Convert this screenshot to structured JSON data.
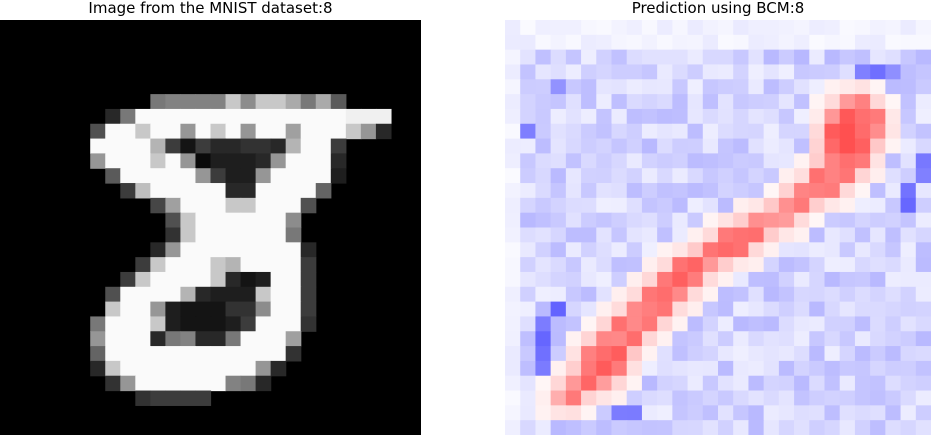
{
  "left_panel": {
    "title": "Image from the MNIST dataset:8",
    "grid": {
      "rows": 28,
      "cols": 28,
      "max": 255,
      "cells": {
        "5": {
          "10": 120,
          "11": 130,
          "12": 130,
          "13": 130,
          "14": 130,
          "15": 200,
          "16": 140,
          "17": 200,
          "18": 200,
          "19": 170,
          "20": 120,
          "21": 170,
          "22": 90
        },
        "6": {
          "7": 40,
          "8": 120,
          "9": 250,
          "10": 250,
          "11": 250,
          "12": 250,
          "13": 250,
          "14": 250,
          "15": 250,
          "16": 250,
          "17": 250,
          "18": 250,
          "19": 250,
          "20": 250,
          "21": 250,
          "22": 250,
          "23": 240,
          "24": 240,
          "25": 240
        },
        "7": {
          "6": 80,
          "7": 250,
          "8": 250,
          "9": 200,
          "10": 250,
          "11": 250,
          "12": 150,
          "13": 250,
          "14": 200,
          "15": 250,
          "16": 150,
          "17": 250,
          "18": 250,
          "19": 160,
          "20": 250,
          "21": 250,
          "22": 250,
          "23": 200,
          "24": 150,
          "25": 40
        },
        "8": {
          "6": 250,
          "7": 250,
          "8": 250,
          "9": 250,
          "10": 180,
          "11": 60,
          "12": 20,
          "13": 60,
          "14": 40,
          "15": 40,
          "16": 50,
          "17": 50,
          "18": 40,
          "19": 180,
          "20": 250,
          "21": 250,
          "22": 60
        },
        "9": {
          "6": 150,
          "7": 250,
          "8": 250,
          "9": 250,
          "10": 200,
          "11": 250,
          "12": 150,
          "13": 10,
          "14": 30,
          "15": 30,
          "16": 30,
          "17": 40,
          "18": 150,
          "19": 250,
          "20": 250,
          "21": 250,
          "22": 40
        },
        "10": {
          "7": 90,
          "8": 250,
          "9": 250,
          "10": 250,
          "11": 250,
          "12": 250,
          "13": 150,
          "14": 60,
          "15": 30,
          "16": 30,
          "17": 150,
          "18": 250,
          "19": 250,
          "20": 250,
          "21": 250,
          "22": 30
        },
        "11": {
          "8": 60,
          "9": 190,
          "10": 250,
          "11": 250,
          "12": 250,
          "13": 250,
          "14": 250,
          "15": 40,
          "16": 40,
          "17": 250,
          "18": 250,
          "19": 250,
          "20": 250,
          "21": 100
        },
        "12": {
          "10": 70,
          "11": 160,
          "12": 250,
          "13": 250,
          "14": 250,
          "15": 200,
          "16": 200,
          "17": 250,
          "18": 250,
          "19": 250,
          "20": 80
        },
        "13": {
          "11": 80,
          "12": 200,
          "13": 250,
          "14": 250,
          "15": 250,
          "16": 250,
          "17": 250,
          "18": 250,
          "19": 140
        },
        "14": {
          "11": 50,
          "12": 200,
          "13": 250,
          "14": 250,
          "15": 250,
          "16": 250,
          "17": 250,
          "18": 250,
          "19": 120
        },
        "15": {
          "10": 40,
          "11": 150,
          "12": 250,
          "13": 250,
          "14": 250,
          "15": 250,
          "16": 250,
          "17": 250,
          "18": 250,
          "19": 250,
          "20": 40
        },
        "16": {
          "9": 60,
          "10": 200,
          "11": 250,
          "12": 250,
          "13": 250,
          "14": 200,
          "15": 180,
          "16": 250,
          "17": 250,
          "18": 250,
          "19": 250,
          "20": 60
        },
        "17": {
          "8": 60,
          "9": 200,
          "10": 250,
          "11": 250,
          "12": 250,
          "13": 250,
          "14": 200,
          "15": 40,
          "16": 20,
          "17": 30,
          "18": 250,
          "19": 250,
          "20": 60
        },
        "18": {
          "7": 80,
          "8": 250,
          "9": 250,
          "10": 250,
          "11": 250,
          "12": 180,
          "13": 40,
          "14": 30,
          "15": 30,
          "16": 30,
          "17": 200,
          "18": 250,
          "19": 250,
          "20": 60
        },
        "19": {
          "7": 200,
          "8": 250,
          "9": 250,
          "10": 150,
          "11": 30,
          "12": 20,
          "13": 20,
          "14": 20,
          "15": 50,
          "16": 50,
          "17": 140,
          "18": 250,
          "19": 250,
          "20": 60
        },
        "20": {
          "6": 120,
          "7": 250,
          "8": 250,
          "9": 250,
          "10": 200,
          "11": 30,
          "12": 20,
          "13": 20,
          "14": 20,
          "15": 30,
          "16": 60,
          "17": 250,
          "18": 250,
          "19": 250,
          "20": 50
        },
        "21": {
          "6": 150,
          "7": 250,
          "8": 250,
          "9": 250,
          "10": 40,
          "11": 120,
          "12": 130,
          "13": 40,
          "14": 40,
          "15": 120,
          "16": 250,
          "17": 250,
          "18": 250,
          "19": 160
        },
        "22": {
          "6": 100,
          "7": 250,
          "8": 250,
          "9": 250,
          "10": 250,
          "11": 250,
          "12": 250,
          "13": 250,
          "14": 250,
          "15": 250,
          "16": 250,
          "17": 250,
          "18": 250,
          "19": 50
        },
        "23": {
          "6": 40,
          "7": 200,
          "8": 250,
          "9": 250,
          "10": 250,
          "11": 250,
          "12": 250,
          "13": 250,
          "14": 250,
          "15": 250,
          "16": 250,
          "17": 150,
          "18": 40
        },
        "24": {
          "7": 50,
          "8": 150,
          "9": 250,
          "10": 250,
          "11": 250,
          "12": 250,
          "13": 250,
          "14": 250,
          "15": 130,
          "16": 120,
          "17": 40
        },
        "25": {
          "9": 50,
          "10": 60,
          "11": 60,
          "12": 60,
          "13": 60
        }
      }
    }
  },
  "right_panel": {
    "title": "Prediction using BCM:8",
    "colormap": {
      "negative": "#3b3bff",
      "neutral": "#ffffff",
      "positive": "#ff5050"
    },
    "grid": {
      "rows": 28,
      "cols": 28,
      "seed": 8,
      "positive_path": [
        [
          5,
          22
        ],
        [
          5,
          23
        ],
        [
          6,
          21
        ],
        [
          6,
          22
        ],
        [
          6,
          23
        ],
        [
          6,
          24
        ],
        [
          7,
          21
        ],
        [
          7,
          22
        ],
        [
          7,
          23
        ],
        [
          7,
          24
        ],
        [
          8,
          21
        ],
        [
          8,
          22
        ],
        [
          8,
          23
        ],
        [
          9,
          21
        ],
        [
          9,
          22
        ],
        [
          9,
          23
        ],
        [
          10,
          20
        ],
        [
          10,
          21
        ],
        [
          10,
          22
        ],
        [
          11,
          19
        ],
        [
          11,
          20
        ],
        [
          11,
          21
        ],
        [
          12,
          18
        ],
        [
          12,
          19
        ],
        [
          13,
          16
        ],
        [
          13,
          17
        ],
        [
          13,
          18
        ],
        [
          14,
          14
        ],
        [
          14,
          15
        ],
        [
          14,
          16
        ],
        [
          15,
          13
        ],
        [
          15,
          14
        ],
        [
          15,
          15
        ],
        [
          16,
          11
        ],
        [
          16,
          12
        ],
        [
          16,
          13
        ],
        [
          17,
          10
        ],
        [
          17,
          11
        ],
        [
          17,
          12
        ],
        [
          18,
          9
        ],
        [
          18,
          10
        ],
        [
          18,
          11
        ],
        [
          19,
          8
        ],
        [
          19,
          9
        ],
        [
          19,
          10
        ],
        [
          20,
          7
        ],
        [
          20,
          8
        ],
        [
          20,
          9
        ],
        [
          21,
          6
        ],
        [
          21,
          7
        ],
        [
          21,
          8
        ],
        [
          22,
          5
        ],
        [
          22,
          6
        ],
        [
          22,
          7
        ],
        [
          23,
          5
        ],
        [
          23,
          6
        ],
        [
          23,
          7
        ],
        [
          24,
          4
        ],
        [
          24,
          5
        ],
        [
          24,
          6
        ],
        [
          25,
          3
        ],
        [
          25,
          4
        ]
      ],
      "negative_spots": [
        [
          3,
          24
        ],
        [
          3,
          25
        ],
        [
          3,
          23
        ],
        [
          9,
          27
        ],
        [
          10,
          27
        ],
        [
          11,
          26
        ],
        [
          12,
          26
        ],
        [
          20,
          2
        ],
        [
          21,
          2
        ],
        [
          22,
          2
        ],
        [
          23,
          2
        ],
        [
          19,
          3
        ],
        [
          26,
          7
        ],
        [
          26,
          8
        ],
        [
          4,
          3
        ],
        [
          7,
          1
        ]
      ]
    }
  }
}
